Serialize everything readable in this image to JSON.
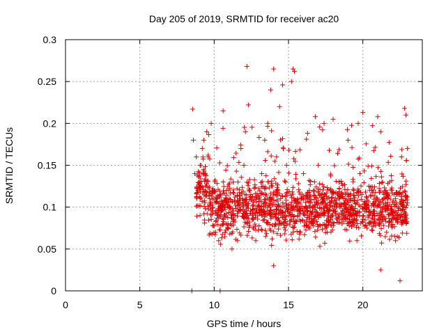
{
  "chart_data": {
    "type": "scatter",
    "title": "Day 205 of 2019, SRMTID for receiver ac20",
    "xlabel": "GPS time / hours",
    "ylabel": "SRMTID / TECUs",
    "xlim": [
      0,
      24
    ],
    "ylim": [
      0,
      0.3
    ],
    "x_ticks": [
      0,
      5,
      10,
      15,
      20
    ],
    "x_tick_labels": [
      "0",
      "5",
      "10",
      "15",
      "20"
    ],
    "y_ticks": [
      0,
      0.05,
      0.1,
      0.15,
      0.2,
      0.25,
      0.3
    ],
    "y_tick_labels": [
      "0",
      "0.05",
      "0.1",
      "0.15",
      "0.2",
      "0.25",
      "0.3"
    ],
    "grid": true,
    "marker": "plus",
    "color": "#e00000",
    "data_range_hours": [
      8.5,
      23.0
    ],
    "series": [
      {
        "name": "SRMTID",
        "points": [
          [
            8.5,
            0.0
          ],
          [
            8.55,
            0.217
          ],
          [
            8.6,
            0.18
          ],
          [
            8.7,
            0.14
          ],
          [
            8.8,
            0.16
          ],
          [
            8.9,
            0.12
          ],
          [
            9.0,
            0.13
          ],
          [
            9.05,
            0.09
          ],
          [
            9.1,
            0.15
          ],
          [
            9.2,
            0.17
          ],
          [
            9.3,
            0.18
          ],
          [
            9.4,
            0.14
          ],
          [
            9.5,
            0.19
          ],
          [
            9.6,
            0.16
          ],
          [
            9.7,
            0.11
          ],
          [
            9.8,
            0.2
          ],
          [
            9.9,
            0.1
          ],
          [
            10.0,
            0.12
          ],
          [
            10.1,
            0.07
          ],
          [
            10.2,
            0.09
          ],
          [
            10.3,
            0.06
          ],
          [
            10.4,
            0.0
          ],
          [
            10.5,
            0.1
          ],
          [
            10.6,
            0.215
          ],
          [
            10.8,
            0.08
          ],
          [
            11.0,
            0.11
          ],
          [
            11.2,
            0.05
          ],
          [
            11.4,
            0.09
          ],
          [
            11.6,
            0.13
          ],
          [
            11.8,
            0.17
          ],
          [
            12.0,
            0.15
          ],
          [
            12.1,
            0.19
          ],
          [
            12.2,
            0.268
          ],
          [
            12.3,
            0.222
          ],
          [
            12.4,
            0.12
          ],
          [
            12.6,
            0.09
          ],
          [
            12.8,
            0.06
          ],
          [
            13.0,
            0.11
          ],
          [
            13.2,
            0.14
          ],
          [
            13.4,
            0.18
          ],
          [
            13.6,
            0.1
          ],
          [
            13.8,
            0.24
          ],
          [
            14.0,
            0.265
          ],
          [
            14.2,
            0.16
          ],
          [
            14.4,
            0.22
          ],
          [
            14.6,
            0.246
          ],
          [
            14.8,
            0.13
          ],
          [
            15.0,
            0.09
          ],
          [
            15.2,
            0.25
          ],
          [
            15.3,
            0.265
          ],
          [
            15.4,
            0.262
          ],
          [
            15.6,
            0.11
          ],
          [
            15.8,
            0.07
          ],
          [
            16.0,
            0.14
          ],
          [
            16.2,
            0.1
          ],
          [
            16.4,
            0.12
          ],
          [
            16.6,
            0.08
          ],
          [
            16.8,
            0.208
          ],
          [
            17.0,
            0.15
          ],
          [
            17.2,
            0.09
          ],
          [
            17.4,
            0.11
          ],
          [
            17.6,
            0.07
          ],
          [
            17.8,
            0.12
          ],
          [
            18.0,
            0.205
          ],
          [
            18.2,
            0.1
          ],
          [
            18.4,
            0.13
          ],
          [
            18.6,
            0.08
          ],
          [
            18.8,
            0.11
          ],
          [
            19.0,
            0.18
          ],
          [
            19.2,
            0.09
          ],
          [
            19.4,
            0.12
          ],
          [
            19.6,
            0.06
          ],
          [
            19.8,
            0.14
          ],
          [
            20.0,
            0.213
          ],
          [
            20.2,
            0.1
          ],
          [
            20.4,
            0.08
          ],
          [
            20.6,
            0.12
          ],
          [
            20.8,
            0.09
          ],
          [
            21.0,
            0.208
          ],
          [
            21.2,
            0.19
          ],
          [
            21.4,
            0.11
          ],
          [
            21.6,
            0.07
          ],
          [
            21.8,
            0.13
          ],
          [
            22.0,
            0.09
          ],
          [
            22.2,
            0.06
          ],
          [
            22.4,
            0.1
          ],
          [
            22.6,
            0.16
          ],
          [
            22.8,
            0.218
          ],
          [
            22.9,
            0.21
          ],
          [
            23.0,
            0.17
          ],
          [
            22.5,
            0.012
          ],
          [
            21.2,
            0.025
          ],
          [
            14.0,
            0.03
          ]
        ]
      }
    ]
  }
}
